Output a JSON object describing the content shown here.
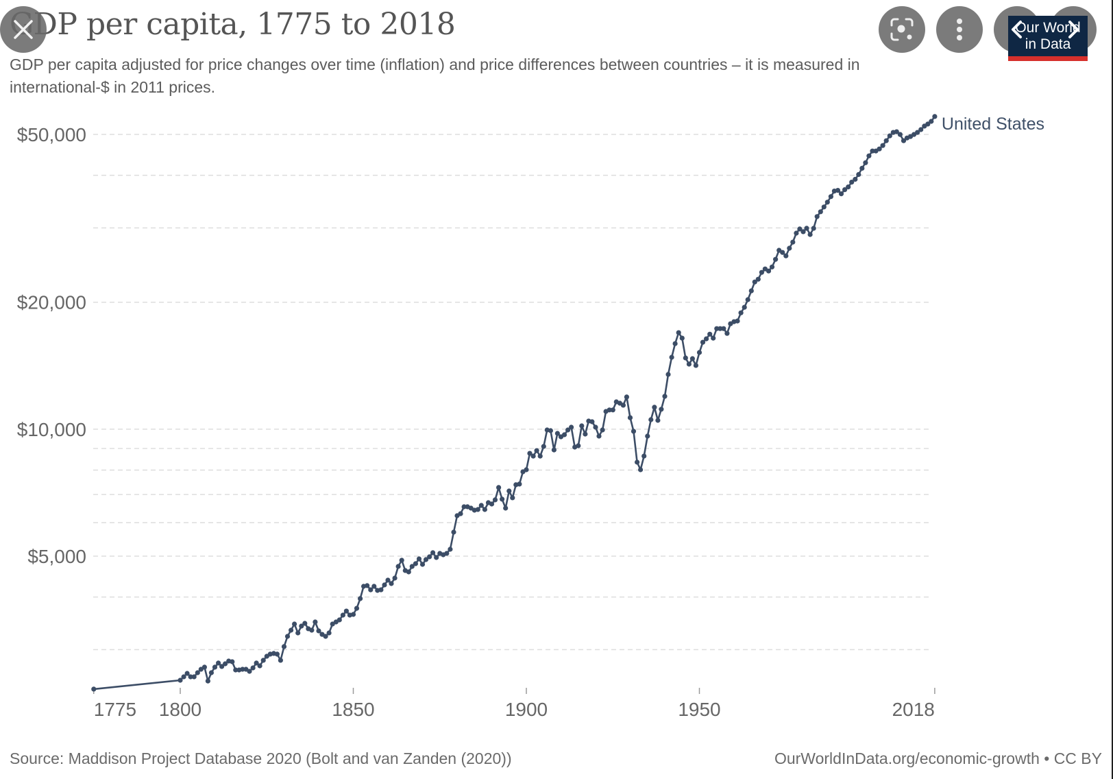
{
  "header": {
    "title": "GDP per capita, 1775 to 2018",
    "subtitle": "GDP per capita adjusted for price changes over time (inflation) and price differences between countries – it is measured in international-$ in 2011 prices."
  },
  "logo": {
    "line1": "Our World",
    "line2": "in Data"
  },
  "overlay_controls": {
    "close": "close-icon",
    "lens": "lens-icon",
    "more": "more-vert-icon",
    "prev": "chevron-left-icon",
    "next": "chevron-right-icon"
  },
  "footer": {
    "source": "Source: Maddison Project Database 2020 (Bolt and van Zanden (2020))",
    "link": "OurWorldInData.org/economic-growth • CC BY"
  },
  "colors": {
    "line": "#3c4d66",
    "grid": "#dddddd",
    "logo_bg": "#0f2744",
    "logo_accent": "#d6302c"
  },
  "chart_data": {
    "type": "line",
    "title": "GDP per capita, 1775 to 2018",
    "subtitle": "GDP per capita adjusted for price changes over time (inflation) and price differences between countries – it is measured in international-$ in 2011 prices.",
    "xlabel": "",
    "ylabel": "",
    "y_scale": "log",
    "ylim": [
      2400,
      56000
    ],
    "xlim": [
      1775,
      2018
    ],
    "grid": true,
    "y_gridlines": [
      3000,
      4000,
      5000,
      6000,
      7000,
      8000,
      9000,
      10000,
      20000,
      30000,
      40000,
      50000
    ],
    "y_ticks": [
      {
        "value": 5000,
        "label": "$5,000"
      },
      {
        "value": 10000,
        "label": "$10,000"
      },
      {
        "value": 20000,
        "label": "$20,000"
      },
      {
        "value": 50000,
        "label": "$50,000"
      }
    ],
    "x_ticks": [
      {
        "value": 1775,
        "label": "1775"
      },
      {
        "value": 1800,
        "label": "1800"
      },
      {
        "value": 1850,
        "label": "1850"
      },
      {
        "value": 1900,
        "label": "1900"
      },
      {
        "value": 1950,
        "label": "1950"
      },
      {
        "value": 2018,
        "label": "2018"
      }
    ],
    "legend": "inline-end-label",
    "series": [
      {
        "name": "United States",
        "x": [
          1775,
          1800,
          1801,
          1802,
          1803,
          1804,
          1805,
          1806,
          1807,
          1808,
          1809,
          1810,
          1811,
          1812,
          1813,
          1814,
          1815,
          1816,
          1817,
          1818,
          1819,
          1820,
          1821,
          1822,
          1823,
          1824,
          1825,
          1826,
          1827,
          1828,
          1829,
          1830,
          1831,
          1832,
          1833,
          1834,
          1835,
          1836,
          1837,
          1838,
          1839,
          1840,
          1841,
          1842,
          1843,
          1844,
          1845,
          1846,
          1847,
          1848,
          1849,
          1850,
          1851,
          1852,
          1853,
          1854,
          1855,
          1856,
          1857,
          1858,
          1859,
          1860,
          1861,
          1862,
          1863,
          1864,
          1865,
          1866,
          1867,
          1868,
          1869,
          1870,
          1871,
          1872,
          1873,
          1874,
          1875,
          1876,
          1877,
          1878,
          1879,
          1880,
          1881,
          1882,
          1883,
          1884,
          1885,
          1886,
          1887,
          1888,
          1889,
          1890,
          1891,
          1892,
          1893,
          1894,
          1895,
          1896,
          1897,
          1898,
          1899,
          1900,
          1901,
          1902,
          1903,
          1904,
          1905,
          1906,
          1907,
          1908,
          1909,
          1910,
          1911,
          1912,
          1913,
          1914,
          1915,
          1916,
          1917,
          1918,
          1919,
          1920,
          1921,
          1922,
          1923,
          1924,
          1925,
          1926,
          1927,
          1928,
          1929,
          1930,
          1931,
          1932,
          1933,
          1934,
          1935,
          1936,
          1937,
          1938,
          1939,
          1940,
          1941,
          1942,
          1943,
          1944,
          1945,
          1946,
          1947,
          1948,
          1949,
          1950,
          1951,
          1952,
          1953,
          1954,
          1955,
          1956,
          1957,
          1958,
          1959,
          1960,
          1961,
          1962,
          1963,
          1964,
          1965,
          1966,
          1967,
          1968,
          1969,
          1970,
          1971,
          1972,
          1973,
          1974,
          1975,
          1976,
          1977,
          1978,
          1979,
          1980,
          1981,
          1982,
          1983,
          1984,
          1985,
          1986,
          1987,
          1988,
          1989,
          1990,
          1991,
          1992,
          1993,
          1994,
          1995,
          1996,
          1997,
          1998,
          1999,
          2000,
          2001,
          2002,
          2003,
          2004,
          2005,
          2006,
          2007,
          2008,
          2009,
          2010,
          2011,
          2012,
          2013,
          2014,
          2015,
          2016,
          2017,
          2018
        ],
        "values": [
          2419,
          2539,
          2587,
          2636,
          2587,
          2587,
          2646,
          2696,
          2727,
          2529,
          2646,
          2727,
          2789,
          2737,
          2778,
          2820,
          2809,
          2686,
          2686,
          2696,
          2696,
          2666,
          2716,
          2789,
          2747,
          2831,
          2895,
          2928,
          2939,
          2928,
          2831,
          3051,
          3226,
          3337,
          3452,
          3288,
          3413,
          3464,
          3363,
          3337,
          3490,
          3325,
          3262,
          3226,
          3288,
          3452,
          3490,
          3530,
          3623,
          3705,
          3623,
          3637,
          3761,
          3965,
          4241,
          4257,
          4161,
          4241,
          4146,
          4161,
          4273,
          4386,
          4305,
          4436,
          4727,
          4889,
          4622,
          4587,
          4727,
          4798,
          4925,
          4780,
          4907,
          4981,
          5094,
          4963,
          5075,
          5037,
          5075,
          5191,
          5701,
          6235,
          6305,
          6547,
          6547,
          6498,
          6425,
          6449,
          6597,
          6449,
          6697,
          6646,
          6799,
          7272,
          6824,
          6498,
          7136,
          6876,
          7382,
          7410,
          7924,
          8013,
          8765,
          8634,
          8898,
          8634,
          9101,
          9958,
          9921,
          8931,
          9772,
          9592,
          9700,
          9958,
          10108,
          9067,
          9136,
          10183,
          9736,
          10453,
          10414,
          10108,
          9628,
          9958,
          11016,
          11107,
          11107,
          11611,
          11524,
          11398,
          11922,
          10648,
          9886,
          8352,
          8013,
          8634,
          9628,
          10532,
          11272,
          10492,
          11148,
          11966,
          13483,
          14807,
          15955,
          16937,
          16440,
          14752,
          14266,
          14697,
          14162,
          15204,
          16077,
          16378,
          16803,
          16440,
          17317,
          17317,
          17317,
          16869,
          17783,
          17982,
          18049,
          18878,
          19453,
          20279,
          21284,
          22339,
          22678,
          23542,
          23982,
          23717,
          24250,
          25277,
          26553,
          26254,
          25768,
          26857,
          27770,
          29166,
          29835,
          29389,
          29948,
          28948,
          29948,
          31924,
          32774,
          33648,
          34546,
          35605,
          36696,
          36833,
          36153,
          36972,
          37533,
          38535,
          39126,
          40171,
          41558,
          42832,
          44474,
          45661,
          45661,
          46179,
          47060,
          48316,
          49607,
          50540,
          50731,
          49981,
          48316,
          49042,
          49418,
          49981,
          50540,
          51330,
          52320,
          52900,
          53685,
          55125
        ]
      }
    ]
  }
}
